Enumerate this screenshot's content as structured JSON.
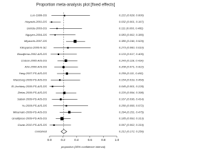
{
  "chart_data": {
    "type": "forest",
    "title": "Proportion meta-analysis plot [fixed effects]",
    "xlabel": "proportion (95% confidence interval)",
    "categories": [
      "Luo-1999-DS",
      "Hayashi-2001-DS",
      "Gohda-2003-DS",
      "Nguyen-2004-DS",
      "Miyauchi-2007-DS",
      "Kikuyama-2006-N-SC",
      "Boudjema-2002-AIS-DS",
      "Colson-2005-AIS-DS",
      "Ahn-2006-AIS-DS",
      "Yang-2007-PS-AIS-DS",
      "Warzburg-2009-PS-AIS-DS",
      "El-Jochbey-2009-PS-AIS-DS",
      "Zielas-2009-PS-AIS-DS",
      "Sabek-2009-PS-AIS-DS",
      "Yu-2009-PS-AIS-DS",
      "Minamato-2009-PS-AIS-DS",
      "Gnalltpose-2009-PS-AIS-DS",
      "Guzar-2010-PS-AIS-DS",
      "combined"
    ],
    "values": [
      0.222,
      0.032,
      0.111,
      0.083,
      0.38,
      0.273,
      0.133,
      0.243,
      0.208,
      0.259,
      0.154,
      0.045,
      0.22,
      0.167,
      0.25,
      0.294,
      0.185,
      0.067,
      0.212
    ],
    "lower": [
      0.028,
      0.001,
      0.003,
      0.002,
      0.246,
      0.06,
      0.017,
      0.118,
      0.071,
      0.111,
      0.019,
      0.001,
      0.094,
      0.036,
      0.055,
      0.151,
      0.093,
      0.002,
      0.172
    ],
    "upper": [
      0.6,
      0.167,
      0.482,
      0.385,
      0.529,
      0.61,
      0.405,
      0.414,
      0.422,
      0.462,
      0.454,
      0.228,
      0.398,
      0.414,
      0.572,
      0.475,
      0.313,
      0.319,
      0.256
    ],
    "value_labels": [
      "0.222 (0.028, 0.600)",
      "0.032 (0.001, 0.167)",
      "0.111 (0.003, 0.482)",
      "0.083 (0.002, 0.385)",
      "0.380 (0.246, 0.529)",
      "0.273 (0.060, 0.610)",
      "0.133 (0.017, 0.405)",
      "0.243 (0.118, 0.414)",
      "0.208 (0.071, 0.422)",
      "0.259 (0.111, 0.462)",
      "0.154 (0.019, 0.454)",
      "0.045 (0.001, 0.228)",
      "0.220 (0.094, 0.398)",
      "0.167 (0.036, 0.414)",
      "0.250 (0.055, 0.572)",
      "0.294 (0.151, 0.475)",
      "0.185 (0.093, 0.313)",
      "0.067 (0.002, 0.319)",
      "0.212 (0.172, 0.256)"
    ],
    "weights": [
      3,
      2,
      2,
      2,
      12,
      3,
      3,
      9,
      6,
      7,
      3,
      3,
      8,
      5,
      3,
      8,
      14,
      3,
      null
    ],
    "xlim": [
      0,
      1
    ],
    "xticks": [
      {
        "value": 0,
        "label": "0.0"
      },
      0.2,
      0.4,
      0.6,
      0.8,
      {
        "value": 1,
        "label": "1.0"
      }
    ],
    "color": "#000000"
  }
}
